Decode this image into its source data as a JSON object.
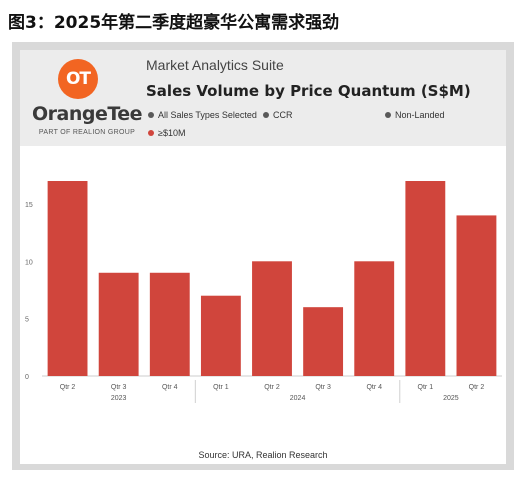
{
  "figure_title": "图3：2025年第二季度超豪华公寓需求强劲",
  "brand": {
    "logo_mark": "OT",
    "name": "OrangeTee",
    "tagline": "PART OF REALION GROUP"
  },
  "header": {
    "suite_name": "Market Analytics Suite",
    "chart_title": "Sales Volume by Price Quantum (S$M)"
  },
  "legend": [
    {
      "label": "All Sales Types Selected",
      "color": "#595959"
    },
    {
      "label": "CCR",
      "color": "#595959"
    },
    {
      "label": "Non-Landed",
      "color": "#595959"
    },
    {
      "label": "≥$10M",
      "color": "#d0453c"
    }
  ],
  "source": "Source: URA, Realion Research",
  "chart_data": {
    "type": "bar",
    "categories": [
      "Qtr 2",
      "Qtr 3",
      "Qtr 4",
      "Qtr 1",
      "Qtr 2",
      "Qtr 3",
      "Qtr 4",
      "Qtr 1",
      "Qtr 2"
    ],
    "values": [
      17,
      9,
      9,
      7,
      10,
      6,
      10,
      17,
      14
    ],
    "year_groups": [
      {
        "label": "2023",
        "count": 3
      },
      {
        "label": "2024",
        "count": 4
      },
      {
        "label": "2025",
        "count": 2
      }
    ],
    "yticks": [
      0,
      5,
      10,
      15
    ],
    "ylim": [
      0,
      18
    ],
    "bar_color": "#d0453c",
    "grid": false
  }
}
